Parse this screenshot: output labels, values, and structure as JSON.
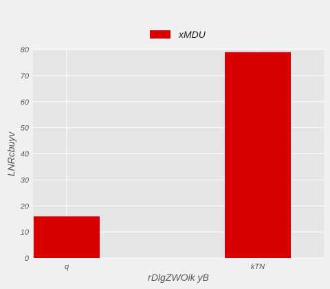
{
  "chart_data": {
    "type": "bar",
    "categories": [
      "q",
      "kTN"
    ],
    "series": [
      {
        "name": "xMDU",
        "values": [
          16,
          79
        ],
        "color": "#d80000"
      }
    ],
    "title": "",
    "xlabel": "rDlgZWOik yB",
    "ylabel": "LNRcbuyv",
    "ylim": [
      0,
      80
    ],
    "yticks": [
      0,
      10,
      20,
      30,
      40,
      50,
      60,
      70,
      80
    ],
    "grid": true,
    "legend": "top-center",
    "plot_background": "#e5e5e5",
    "background": "#f0f0f0"
  }
}
